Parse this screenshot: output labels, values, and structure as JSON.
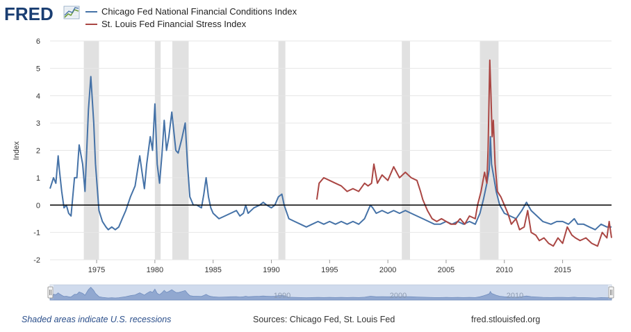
{
  "brand": {
    "logo_text": "FRED"
  },
  "legend": [
    {
      "label": "Chicago Fed National Financial Conditions Index",
      "color": "#4572a7"
    },
    {
      "label": "St. Louis Fed Financial Stress Index",
      "color": "#aa4643"
    }
  ],
  "navigator": {
    "ticks": [
      "1980",
      "1990",
      "2000",
      "2010"
    ]
  },
  "footer": {
    "note": "Shaded areas indicate U.S. recessions",
    "sources": "Sources: Chicago Fed, St. Louis Fed",
    "site": "fred.stlouisfed.org"
  },
  "chart_data": {
    "type": "line",
    "title": "",
    "xlabel": "",
    "ylabel": "Index",
    "xlim": [
      1971.0,
      2019.2
    ],
    "ylim": [
      -2,
      6
    ],
    "yticks": [
      -2,
      -1,
      0,
      1,
      2,
      3,
      4,
      5,
      6
    ],
    "xticks": [
      1975,
      1980,
      1985,
      1990,
      1995,
      2000,
      2005,
      2010,
      2015
    ],
    "grid": true,
    "zero_line": 0,
    "recessions": [
      [
        1973.9,
        1975.2
      ],
      [
        1980.0,
        1980.5
      ],
      [
        1981.5,
        1982.9
      ],
      [
        1990.6,
        1991.2
      ],
      [
        2001.2,
        2001.9
      ],
      [
        2007.9,
        2009.5
      ]
    ],
    "series": [
      {
        "name": "Chicago Fed National Financial Conditions Index",
        "color": "#4572a7",
        "x": [
          1971.0,
          1971.3,
          1971.5,
          1971.7,
          1971.8,
          1972.0,
          1972.2,
          1972.4,
          1972.6,
          1972.8,
          1973.1,
          1973.3,
          1973.5,
          1973.8,
          1974.0,
          1974.3,
          1974.5,
          1974.75,
          1974.9,
          1975.2,
          1975.5,
          1975.8,
          1976.0,
          1976.3,
          1976.6,
          1976.9,
          1977.2,
          1977.5,
          1977.9,
          1978.3,
          1978.7,
          1978.9,
          1979.1,
          1979.3,
          1979.6,
          1979.8,
          1980.0,
          1980.2,
          1980.4,
          1980.6,
          1980.8,
          1981.0,
          1981.2,
          1981.45,
          1981.6,
          1981.8,
          1982.0,
          1982.3,
          1982.6,
          1982.8,
          1983.0,
          1983.3,
          1983.6,
          1984.0,
          1984.2,
          1984.4,
          1984.6,
          1984.8,
          1985.0,
          1985.5,
          1986.0,
          1986.5,
          1987.0,
          1987.3,
          1987.6,
          1987.8,
          1988.0,
          1988.5,
          1989.0,
          1989.3,
          1989.6,
          1990.0,
          1990.3,
          1990.6,
          1990.9,
          1991.1,
          1991.5,
          1992.0,
          1992.5,
          1993.0,
          1993.5,
          1994.0,
          1994.5,
          1995.0,
          1995.5,
          1996.0,
          1996.5,
          1997.0,
          1997.5,
          1998.0,
          1998.5,
          1998.7,
          1999.0,
          1999.5,
          2000.0,
          2000.5,
          2001.0,
          2001.5,
          2002.0,
          2002.5,
          2003.0,
          2003.5,
          2004.0,
          2004.5,
          2005.0,
          2005.5,
          2006.0,
          2006.5,
          2007.0,
          2007.5,
          2007.9,
          2008.2,
          2008.5,
          2008.7,
          2008.8,
          2008.9,
          2009.1,
          2009.3,
          2009.6,
          2010.0,
          2010.5,
          2011.0,
          2011.5,
          2011.9,
          2012.3,
          2012.8,
          2013.3,
          2014.0,
          2014.5,
          2015.0,
          2015.5,
          2016.0,
          2016.3,
          2016.8,
          2017.3,
          2017.8,
          2018.3,
          2018.8,
          2019.2
        ],
        "values": [
          0.6,
          1.0,
          0.8,
          1.8,
          1.3,
          0.5,
          -0.1,
          0.0,
          -0.3,
          -0.4,
          1.0,
          1.0,
          2.2,
          1.5,
          0.5,
          3.5,
          4.7,
          3.0,
          1.5,
          -0.2,
          -0.6,
          -0.8,
          -0.9,
          -0.8,
          -0.9,
          -0.8,
          -0.5,
          -0.2,
          0.3,
          0.7,
          1.8,
          1.2,
          0.6,
          1.5,
          2.5,
          2.0,
          3.7,
          1.5,
          0.8,
          1.8,
          3.1,
          2.0,
          2.5,
          3.4,
          2.8,
          2.0,
          1.9,
          2.4,
          3.0,
          1.5,
          0.3,
          0.0,
          0.0,
          -0.1,
          0.4,
          1.0,
          0.3,
          -0.1,
          -0.3,
          -0.5,
          -0.4,
          -0.3,
          -0.2,
          -0.4,
          -0.3,
          0.0,
          -0.3,
          -0.1,
          0.0,
          0.1,
          0.0,
          -0.1,
          0.0,
          0.3,
          0.4,
          0.0,
          -0.5,
          -0.6,
          -0.7,
          -0.8,
          -0.7,
          -0.6,
          -0.7,
          -0.6,
          -0.7,
          -0.6,
          -0.7,
          -0.6,
          -0.7,
          -0.5,
          0.0,
          -0.1,
          -0.3,
          -0.2,
          -0.3,
          -0.2,
          -0.3,
          -0.2,
          -0.3,
          -0.4,
          -0.5,
          -0.6,
          -0.7,
          -0.7,
          -0.6,
          -0.7,
          -0.6,
          -0.7,
          -0.6,
          -0.7,
          -0.3,
          0.2,
          0.8,
          1.3,
          2.5,
          1.5,
          1.0,
          0.5,
          0.0,
          -0.3,
          -0.4,
          -0.5,
          -0.2,
          0.1,
          -0.2,
          -0.4,
          -0.6,
          -0.7,
          -0.6,
          -0.6,
          -0.7,
          -0.5,
          -0.7,
          -0.7,
          -0.8,
          -0.9,
          -0.7,
          -0.8,
          -0.8
        ]
      },
      {
        "name": "St. Louis Fed Financial Stress Index",
        "color": "#aa4643",
        "x": [
          1993.9,
          1994.1,
          1994.5,
          1995.0,
          1995.5,
          1996.0,
          1996.5,
          1997.0,
          1997.5,
          1998.0,
          1998.3,
          1998.6,
          1998.8,
          1999.1,
          1999.5,
          2000.0,
          2000.5,
          2001.0,
          2001.5,
          2002.0,
          2002.5,
          2002.8,
          2003.0,
          2003.4,
          2003.8,
          2004.2,
          2004.6,
          2005.0,
          2005.4,
          2005.8,
          2006.2,
          2006.6,
          2007.0,
          2007.5,
          2007.7,
          2008.0,
          2008.3,
          2008.5,
          2008.6,
          2008.75,
          2008.85,
          2008.95,
          2009.05,
          2009.2,
          2009.4,
          2009.7,
          2010.0,
          2010.3,
          2010.6,
          2011.0,
          2011.3,
          2011.7,
          2012.0,
          2012.3,
          2012.7,
          2013.0,
          2013.4,
          2013.8,
          2014.2,
          2014.6,
          2015.0,
          2015.4,
          2015.8,
          2016.1,
          2016.5,
          2017.0,
          2017.5,
          2018.0,
          2018.4,
          2018.8,
          2019.0,
          2019.2
        ],
        "values": [
          0.2,
          0.8,
          1.0,
          0.9,
          0.8,
          0.7,
          0.5,
          0.6,
          0.5,
          0.8,
          0.7,
          0.8,
          1.5,
          0.8,
          1.1,
          0.9,
          1.4,
          1.0,
          1.2,
          1.0,
          0.9,
          0.5,
          0.2,
          -0.2,
          -0.5,
          -0.6,
          -0.5,
          -0.6,
          -0.7,
          -0.7,
          -0.5,
          -0.7,
          -0.4,
          -0.5,
          0.0,
          0.5,
          1.2,
          0.8,
          2.0,
          5.3,
          4.0,
          2.5,
          3.1,
          1.5,
          0.5,
          0.3,
          0.0,
          -0.3,
          -0.7,
          -0.5,
          -0.9,
          -0.8,
          -0.2,
          -1.0,
          -1.1,
          -1.3,
          -1.2,
          -1.4,
          -1.5,
          -1.2,
          -1.4,
          -0.8,
          -1.1,
          -1.2,
          -1.3,
          -1.2,
          -1.4,
          -1.5,
          -1.0,
          -1.2,
          -0.6,
          -1.2
        ]
      }
    ]
  }
}
